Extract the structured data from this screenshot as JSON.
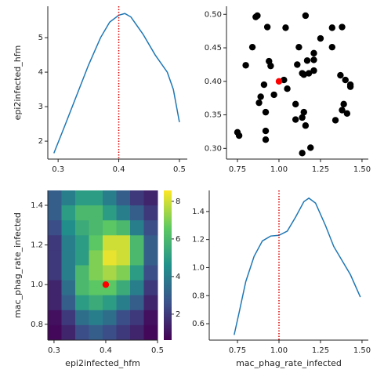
{
  "chart_data": [
    {
      "type": "line",
      "ylabel": "epi2infected_hfm",
      "x": [
        0.293,
        0.31,
        0.33,
        0.35,
        0.37,
        0.385,
        0.4,
        0.41,
        0.42,
        0.44,
        0.46,
        0.48,
        0.49,
        0.5
      ],
      "values": [
        1.65,
        2.4,
        3.3,
        4.2,
        5.0,
        5.45,
        5.65,
        5.7,
        5.6,
        5.1,
        4.5,
        4.0,
        3.5,
        2.55
      ],
      "color": "#1f77b4",
      "vline": 0.4,
      "vline_color": "#e00000",
      "xlim": [
        0.283,
        0.513
      ],
      "ylim": [
        1.48,
        5.91
      ],
      "xticks": [
        0.3,
        0.4,
        0.5
      ],
      "yticks": [
        2,
        3,
        4,
        5
      ]
    },
    {
      "type": "scatter",
      "color": "#000000",
      "x": [
        0.75,
        0.76,
        0.8,
        0.84,
        0.86,
        0.87,
        0.93,
        0.94,
        0.95,
        0.88,
        0.89,
        0.91,
        0.92,
        0.92,
        0.92,
        0.97,
        1.03,
        1.05,
        1.04,
        1.12,
        1.1,
        1.1,
        1.11,
        1.14,
        1.15,
        1.14,
        1.15,
        1.14,
        1.16,
        1.16,
        1.18,
        1.19,
        1.17,
        1.21,
        1.21,
        1.21,
        1.25,
        1.32,
        1.32,
        1.34,
        1.37,
        1.38,
        1.38,
        1.39,
        1.4,
        1.41,
        1.43,
        1.43
      ],
      "values": [
        0.324,
        0.319,
        0.424,
        0.451,
        0.496,
        0.498,
        0.481,
        0.43,
        0.423,
        0.368,
        0.377,
        0.395,
        0.354,
        0.326,
        0.313,
        0.38,
        0.402,
        0.389,
        0.48,
        0.451,
        0.366,
        0.343,
        0.425,
        0.412,
        0.41,
        0.346,
        0.354,
        0.293,
        0.334,
        0.498,
        0.412,
        0.301,
        0.431,
        0.416,
        0.432,
        0.442,
        0.464,
        0.451,
        0.48,
        0.342,
        0.409,
        0.481,
        0.357,
        0.366,
        0.402,
        0.352,
        0.395,
        0.392
      ],
      "highlight": {
        "x": 1.0,
        "y": 0.4,
        "color": "#ff0000"
      },
      "xlim": [
        0.684,
        1.538
      ],
      "ylim": [
        0.284,
        0.512
      ],
      "xticks": [
        0.75,
        {
          "value": 1,
          "label": "1.00"
        },
        1.25,
        {
          "value": 1.5,
          "label": "1.50"
        }
      ],
      "yticks": [
        {
          "value": 0.3,
          "label": "0.30"
        },
        0.35,
        {
          "value": 0.4,
          "label": "0.40"
        },
        0.45,
        {
          "value": 0.5,
          "label": "0.50"
        }
      ]
    },
    {
      "type": "heatmap",
      "xlabel": "epi2infected_hfm",
      "ylabel": "mac_phag_rate_infected",
      "cmap": "viridis",
      "z": [
        [
          3,
          4,
          5,
          5,
          4,
          3,
          2,
          1.5
        ],
        [
          3,
          5,
          6,
          6,
          5,
          4,
          3,
          2
        ],
        [
          2.5,
          4.5,
          5.5,
          6,
          6.5,
          6,
          4,
          2.5
        ],
        [
          2,
          4,
          5,
          6.5,
          8,
          8,
          6,
          3
        ],
        [
          2,
          4,
          5,
          7,
          8.3,
          8,
          6,
          3
        ],
        [
          2,
          4,
          6,
          7,
          7.5,
          7,
          5,
          2.5
        ],
        [
          1.5,
          3.5,
          6,
          6.5,
          6.5,
          5.5,
          4,
          2
        ],
        [
          1.5,
          3,
          5,
          5.5,
          5,
          4,
          3,
          1.5
        ],
        [
          1,
          2,
          3.5,
          4,
          3.5,
          2.5,
          2,
          1
        ],
        [
          0.8,
          1.5,
          2.5,
          3,
          2.5,
          2,
          1.5,
          0.8
        ]
      ],
      "highlight": {
        "x": 0.4,
        "y": 1.0,
        "color": "#ff0000"
      },
      "xlim": [
        0.288,
        0.5
      ],
      "ylim": [
        0.72,
        1.475
      ],
      "clim": [
        0.62,
        8.58
      ],
      "xticks": [
        0.3,
        0.4,
        0.5
      ],
      "yticks": [
        0.8,
        {
          "value": 1,
          "label": "1.0"
        },
        1.2,
        1.4
      ],
      "cticks": [
        2,
        4,
        6,
        8
      ]
    },
    {
      "type": "line",
      "xlabel": "mac_phag_rate_infected",
      "x": [
        0.73,
        0.76,
        0.8,
        0.85,
        0.9,
        0.95,
        1.0,
        1.05,
        1.1,
        1.15,
        1.18,
        1.22,
        1.28,
        1.33,
        1.38,
        1.43,
        1.49
      ],
      "values": [
        0.52,
        0.68,
        0.9,
        1.08,
        1.19,
        1.225,
        1.23,
        1.26,
        1.36,
        1.47,
        1.495,
        1.46,
        1.3,
        1.15,
        1.05,
        0.95,
        0.79
      ],
      "color": "#1f77b4",
      "vline": 1.0,
      "vline_color": "#e00000",
      "xlim": [
        0.58,
        1.538
      ],
      "ylim": [
        0.483,
        1.55
      ],
      "xticks": [
        0.75,
        {
          "value": 1,
          "label": "1.00"
        },
        1.25,
        {
          "value": 1.5,
          "label": "1.50"
        }
      ],
      "yticks": [
        0.6,
        0.8,
        {
          "value": 1,
          "label": "1.0"
        },
        1.2,
        1.4
      ]
    }
  ]
}
